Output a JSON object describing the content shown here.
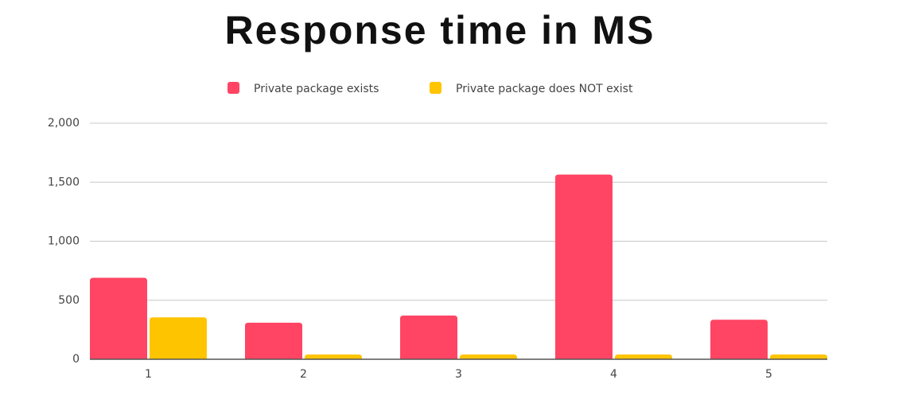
{
  "chart_data": {
    "type": "bar",
    "title": "Response time in MS",
    "categories": [
      "1",
      "2",
      "3",
      "4",
      "5"
    ],
    "series": [
      {
        "name": "Private package exists",
        "color": "#ff4563",
        "values": [
          690,
          310,
          370,
          1565,
          335
        ]
      },
      {
        "name": "Private package does NOT exist",
        "color": "#ffc400",
        "values": [
          355,
          40,
          40,
          40,
          40
        ]
      }
    ],
    "ylim": [
      0,
      2000
    ],
    "yticks": [
      0,
      500,
      {
        "value": 1000,
        "label": "1,000"
      },
      {
        "value": 1500,
        "label": "1,500"
      },
      {
        "value": 2000,
        "label": "2,000"
      }
    ],
    "grid": true,
    "legend": "top"
  }
}
